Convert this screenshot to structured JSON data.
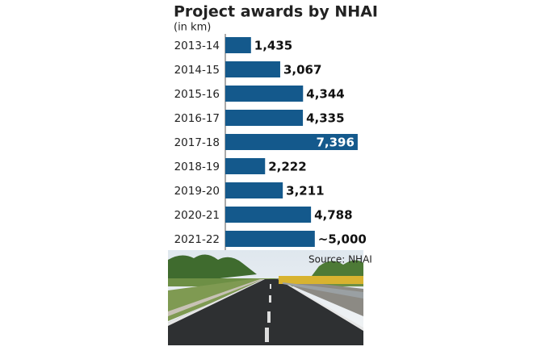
{
  "chart_data": {
    "type": "bar",
    "orientation": "horizontal",
    "title": "Project awards by NHAI",
    "subtitle": "(in km)",
    "source": "Source: NHAI",
    "categories": [
      "2013-14",
      "2014-15",
      "2015-16",
      "2016-17",
      "2017-18",
      "2018-19",
      "2019-20",
      "2020-21",
      "2021-22"
    ],
    "values": [
      1435,
      3067,
      4344,
      4335,
      7396,
      2222,
      3211,
      4788,
      5000
    ],
    "value_labels": [
      "1,435",
      "3,067",
      "4,344",
      "4,335",
      "7,396",
      "2,222",
      "3,211",
      "4,788",
      "~5,000"
    ],
    "color": "#14598c",
    "xlim": [
      0,
      7400
    ]
  }
}
